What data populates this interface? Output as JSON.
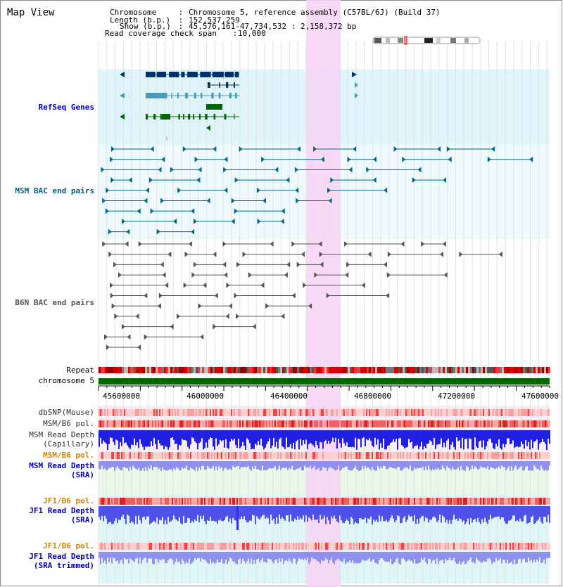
{
  "app": {
    "title": "Map View"
  },
  "header": {
    "rows": [
      {
        "label": "Chromosome",
        "value": "Chromosome 5, reference assembly (C57BL/6J) (Build 37)"
      },
      {
        "label": "Length (b.p.)",
        "value": "152,537,259"
      },
      {
        "label": "Show (b.p.)",
        "value": "45,576,161-47,734,532 : 2,158,372 bp"
      },
      {
        "label": "Read coverage check span",
        "value": "10,000"
      }
    ],
    "separator": " : "
  },
  "tracks": {
    "refseq": "RefSeq Genes",
    "msm_bac": "MSM BAC end pairs",
    "b6n_bac": "B6N BAC end pairs",
    "repeat": "Repeat",
    "chromosome": "chromosome 5",
    "dbsnp": "dbSNP(Mouse)",
    "msm_pol": "MSM/B6 pol.",
    "msm_depth_cap": "MSM Read Depth\n(Capillary)",
    "msm_pol2": "MSM/B6 pol.",
    "msm_depth_sra": "MSM Read Depth\n(SRA)",
    "jf1_pol": "JF1/B6 pol.",
    "jf1_depth_sra": "JF1 Read Depth\n(SRA)",
    "jf1_pol2": "JF1/B6 pol.",
    "jf1_depth_trim": "JF1 Read Depth\n(SRA trimmed)"
  },
  "axis": {
    "ticks": [
      "45600000",
      "46000000",
      "46400000",
      "46800000",
      "47200000",
      "47600000"
    ]
  },
  "colors": {
    "label_blue": "#0000b0",
    "label_teal": "#006080",
    "label_gray": "#505050",
    "label_orange": "#d08000",
    "highlight": "#f8d4f4",
    "gene_navy": "#003366",
    "gene_teal": "#4a9ab8",
    "gene_green": "#006600",
    "bac_msm": "#006a8a",
    "bac_b6n": "#555555",
    "chrom_bar": "#006600",
    "depth_blue": "#2020e0",
    "depth_light": "#9090ee"
  }
}
